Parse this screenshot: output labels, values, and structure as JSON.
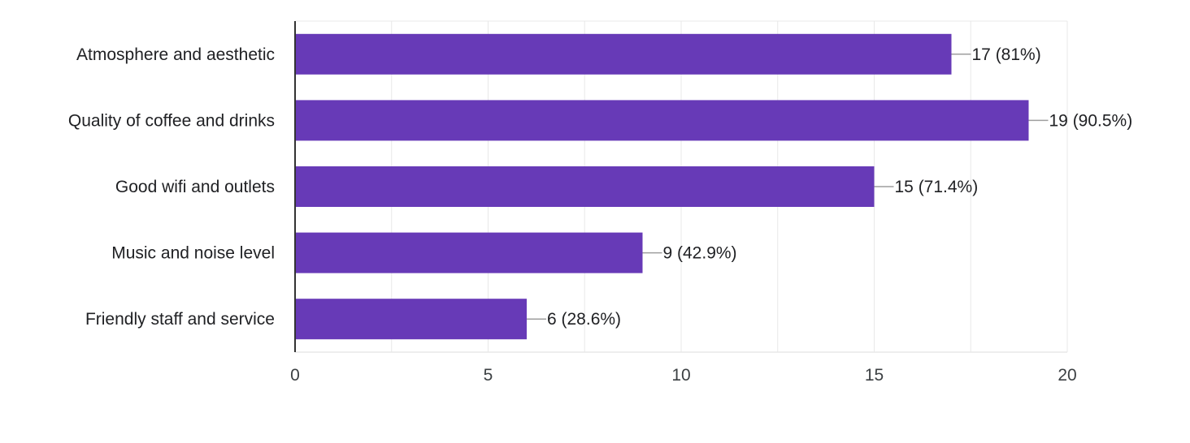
{
  "chart_data": {
    "type": "bar",
    "orientation": "horizontal",
    "categories": [
      "Atmosphere and aesthetic",
      "Quality of coffee and drinks",
      "Good wifi and outlets",
      "Music and noise level",
      "Friendly staff and service"
    ],
    "values": [
      17,
      19,
      15,
      9,
      6
    ],
    "data_labels": [
      "17 (81%)",
      "19 (90.5%)",
      "15 (71.4%)",
      "9 (42.9%)",
      "6 (28.6%)"
    ],
    "x_ticks": [
      "0",
      "5",
      "10",
      "15",
      "20"
    ],
    "xlim": [
      0,
      20
    ],
    "grid": true,
    "legend": "none",
    "title": "",
    "xlabel": "",
    "ylabel": ""
  },
  "colors": {
    "bar": "#673ab7",
    "grid": "#e8e8e8",
    "axis": "#333333",
    "leader": "#9e9e9e"
  }
}
